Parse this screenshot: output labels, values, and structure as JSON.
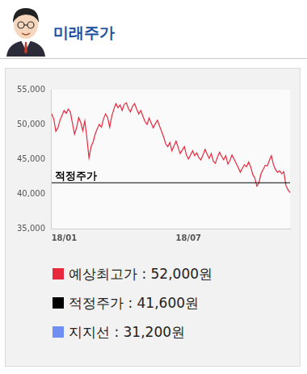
{
  "header": {
    "title": "미래주가"
  },
  "chart_data": {
    "type": "line",
    "categories": [
      null,
      null,
      null,
      null,
      null,
      null,
      "18/01",
      null,
      null,
      null,
      null,
      null,
      null,
      null,
      null,
      null,
      null,
      null,
      null,
      null,
      null,
      null,
      null,
      null,
      null,
      null,
      null,
      null,
      null,
      null,
      null,
      null,
      null,
      null,
      null,
      null,
      null,
      null,
      null,
      null,
      null,
      null,
      null,
      null,
      null,
      null,
      null,
      null,
      null,
      null,
      null,
      null,
      null,
      null,
      null,
      null,
      null,
      null,
      null,
      null,
      null,
      null,
      null,
      null,
      null,
      null,
      "18/07",
      null,
      null,
      null,
      null,
      null,
      null,
      null,
      null,
      null,
      null,
      null,
      null,
      null,
      null,
      null,
      null,
      null,
      null,
      null,
      null,
      null,
      null,
      null,
      null,
      null,
      null,
      null,
      null,
      null,
      null,
      null,
      null,
      null,
      null,
      null,
      null,
      null,
      null,
      null,
      null,
      null,
      null,
      null,
      null,
      null,
      null,
      null,
      null,
      null
    ],
    "series": [
      {
        "color": "#e8283c",
        "values": [
          51500,
          50800,
          49000,
          49500,
          50600,
          51300,
          52000,
          51600,
          52200,
          51800,
          50200,
          48600,
          49500,
          51000,
          50300,
          49100,
          50500,
          48000,
          45200,
          46800,
          47500,
          48600,
          49400,
          50000,
          49600,
          50800,
          51500,
          51000,
          49600,
          51200,
          52200,
          53000,
          52400,
          52800,
          52000,
          52900,
          53100,
          52300,
          51800,
          52600,
          53000,
          52200,
          51500,
          52000,
          51200,
          50400,
          50000,
          50900,
          50200,
          49500,
          50100,
          50600,
          49800,
          49000,
          48200,
          47200,
          46800,
          47400,
          46200,
          46900,
          47600,
          46700,
          45800,
          46300,
          46800,
          45600,
          45000,
          45600,
          46200,
          45500,
          45900,
          45200,
          44900,
          45600,
          46400,
          45700,
          45100,
          45800,
          44700,
          44400,
          45300,
          46000,
          45400,
          44900,
          45500,
          44300,
          44800,
          45600,
          45000,
          44400,
          43800,
          43100,
          43700,
          44200,
          43900,
          44600,
          43900,
          42800,
          42300,
          41100,
          41600,
          42900,
          43500,
          44100,
          44000,
          44800,
          45500,
          44200,
          43500,
          43100,
          43300,
          42900,
          43200,
          41200,
          40600,
          40200
        ]
      }
    ],
    "annotations": [
      {
        "text": "적정주가",
        "y": 41600,
        "color": "#000000"
      }
    ],
    "ylim": [
      35000,
      55000
    ],
    "yticks": [
      {
        "value": 35000,
        "label": "35,000"
      },
      {
        "value": 40000,
        "label": "40,000"
      },
      {
        "value": 45000,
        "label": "45,000"
      },
      {
        "value": 50000,
        "label": "50,000"
      },
      {
        "value": 55000,
        "label": "55,000"
      }
    ],
    "grid": false
  },
  "summary": [
    {
      "text": "예상최고가 : 52,000원",
      "color": "#e8283c"
    },
    {
      "text": "적정주가 : 41,600원",
      "color": "#000000"
    },
    {
      "text": "지지선 : 31,200원",
      "color": "#6f8ff2"
    }
  ]
}
